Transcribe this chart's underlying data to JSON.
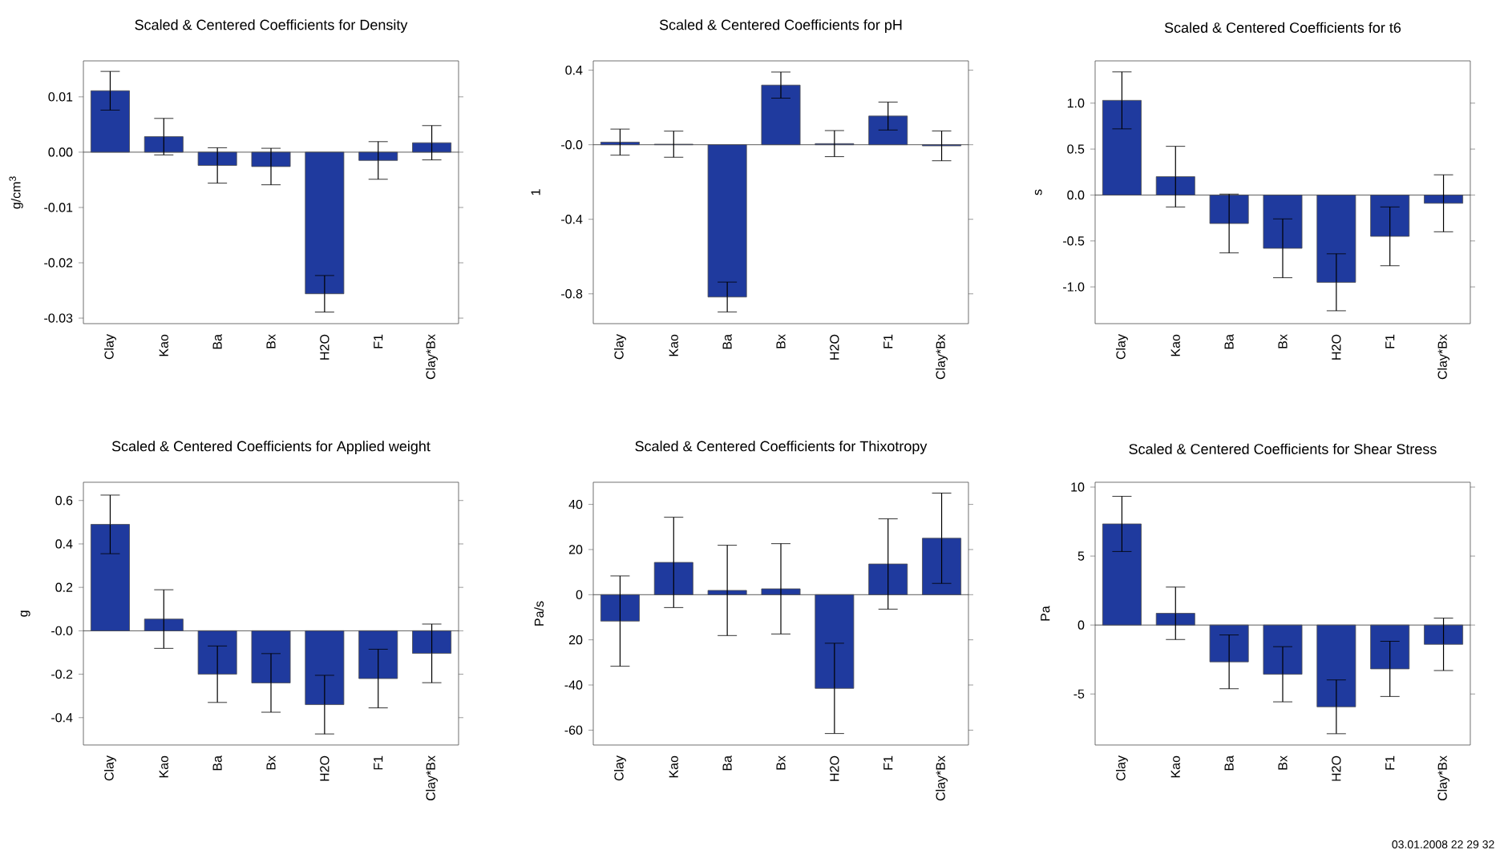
{
  "chart_data": [
    {
      "type": "bar",
      "title": "Scaled & Centered Coefficients for Density",
      "ylabel": "g/cm$^{3}$",
      "color": "#1f3a9e",
      "categories": [
        "Clay",
        "Kao",
        "Ba",
        "Bx",
        "H2O",
        "F1",
        "Clay*Bx"
      ],
      "values": [
        0.0111,
        0.0028,
        -0.0024,
        -0.0026,
        -0.0256,
        -0.0015,
        0.0017
      ],
      "errors": [
        0.0035,
        0.0033,
        0.0032,
        0.0033,
        0.0033,
        0.0034,
        0.0031
      ],
      "ylim": [
        -0.031,
        0.0165
      ],
      "yticks": [
        {
          "value": -0.03,
          "label": "-0.03"
        },
        {
          "value": -0.02,
          "label": "-0.02"
        },
        {
          "value": -0.01,
          "label": "-0.01"
        },
        {
          "value": 0,
          "label": "0.00"
        },
        {
          "value": 0.01,
          "label": "0.01"
        }
      ]
    },
    {
      "type": "bar",
      "title": "Scaled & Centered Coefficients for pH",
      "ylabel": "1",
      "color": "#1f3a9e",
      "categories": [
        "Clay",
        "Kao",
        "Ba",
        "Bx",
        "H2O",
        "F1",
        "Clay*Bx"
      ],
      "values": [
        0.014,
        0.003,
        -0.817,
        0.32,
        0.006,
        0.154,
        -0.006
      ],
      "errors": [
        0.07,
        0.07,
        0.08,
        0.07,
        0.07,
        0.075,
        0.08
      ],
      "ylim": [
        -0.96,
        0.45
      ],
      "yticks": [
        {
          "value": -0.8,
          "label": "-0.8"
        },
        {
          "value": -0.4,
          "label": "-0.4"
        },
        {
          "value": 0,
          "label": "-0.0"
        },
        {
          "value": 0.4,
          "label": "0.4"
        }
      ]
    },
    {
      "type": "bar",
      "title": "Scaled & Centered Coefficients for t6",
      "ylabel": "s",
      "color": "#1f3a9e",
      "categories": [
        "Clay",
        "Kao",
        "Ba",
        "Bx",
        "H2O",
        "F1",
        "Clay*Bx"
      ],
      "values": [
        1.03,
        0.2,
        -0.31,
        -0.58,
        -0.95,
        -0.45,
        -0.09
      ],
      "errors": [
        0.31,
        0.33,
        0.32,
        0.32,
        0.31,
        0.32,
        0.31
      ],
      "ylim": [
        -1.4,
        1.46
      ],
      "yticks": [
        {
          "value": -1,
          "label": "-1.0"
        },
        {
          "value": -0.5,
          "label": "-0.5"
        },
        {
          "value": 0,
          "label": "0.0"
        },
        {
          "value": 0.5,
          "label": "0.5"
        },
        {
          "value": 1,
          "label": "1.0"
        }
      ]
    },
    {
      "type": "bar",
      "title": "Scaled & Centered Coefficients for Applied weight",
      "ylabel": "g",
      "color": "#1f3a9e",
      "categories": [
        "Clay",
        "Kao",
        "Ba",
        "Bx",
        "H2O",
        "F1",
        "Clay*Bx"
      ],
      "values": [
        0.49,
        0.054,
        -0.2,
        -0.24,
        -0.34,
        -0.22,
        -0.104
      ],
      "errors": [
        0.135,
        0.135,
        0.13,
        0.135,
        0.135,
        0.135,
        0.135
      ],
      "ylim": [
        -0.526,
        0.684
      ],
      "yticks": [
        {
          "value": -0.4,
          "label": "-0.4"
        },
        {
          "value": -0.2,
          "label": "-0.2"
        },
        {
          "value": 0,
          "label": "-0.0"
        },
        {
          "value": 0.2,
          "label": "0.2"
        },
        {
          "value": 0.4,
          "label": "0.4"
        },
        {
          "value": 0.6,
          "label": "0.6"
        }
      ]
    },
    {
      "type": "bar",
      "title": "Scaled & Centered Coefficients for Thixotropy",
      "ylabel": "Pa/s",
      "color": "#1f3a9e",
      "categories": [
        "Clay",
        "Kao",
        "Ba",
        "Bx",
        "H2O",
        "F1",
        "Clay*Bx"
      ],
      "values": [
        -11.7,
        14.3,
        1.9,
        2.6,
        -41.5,
        13.6,
        25
      ],
      "errors": [
        20,
        20,
        20,
        20,
        20,
        20,
        20
      ],
      "ylim": [
        -66.6,
        49.8
      ],
      "yticks": [
        -60,
        -40,
        {
          "value": -20,
          "label": "20"
        },
        0,
        20,
        40
      ]
    },
    {
      "type": "bar",
      "title": "Scaled & Centered Coefficients for Shear Stress",
      "ylabel": "Pa",
      "color": "#1f3a9e",
      "categories": [
        "Clay",
        "Kao",
        "Ba",
        "Bx",
        "H2O",
        "F1",
        "Clay*Bx"
      ],
      "values": [
        7.33,
        0.85,
        -2.67,
        -3.57,
        -5.93,
        -3.18,
        -1.4
      ],
      "errors": [
        2.0,
        1.9,
        1.95,
        2.0,
        1.95,
        2.0,
        1.9
      ],
      "ylim": [
        -8.7,
        10.35
      ],
      "yticks": [
        -5,
        0,
        5,
        10
      ],
      "annotations": [
        "03.01.2008 22 29 32"
      ]
    }
  ]
}
